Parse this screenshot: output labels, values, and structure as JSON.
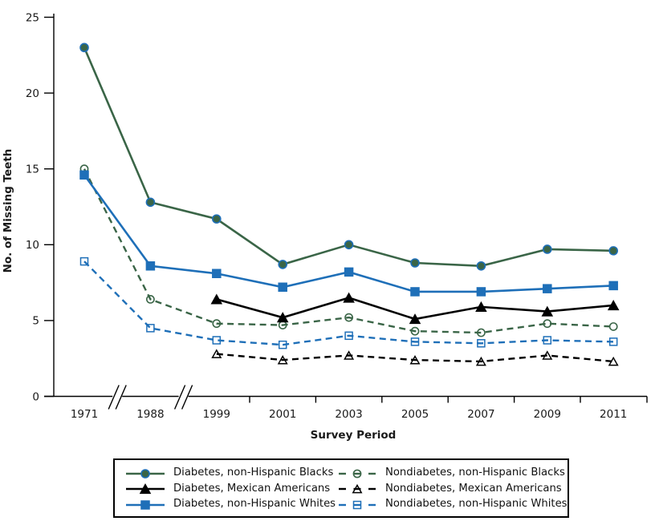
{
  "chart_data": {
    "type": "line",
    "xlabel": "Survey Period",
    "ylabel": "No. of Missing Teeth",
    "ylim": [
      0,
      25
    ],
    "yticks": [
      0,
      5,
      10,
      15,
      20,
      25
    ],
    "grid": "off",
    "legend_position": "bottom-boxed-2-columns",
    "categories": [
      "1971",
      "1988",
      "1999",
      "2001",
      "2003",
      "2005",
      "2007",
      "2009",
      "2011"
    ],
    "axis_breaks_after": [
      0,
      1
    ],
    "colors": {
      "green": "#3a6547",
      "blue": "#1e6fb8",
      "black": "#000000",
      "axis": "#000000",
      "text": "#1a1a1a"
    },
    "series": [
      {
        "name": "Diabetes, non-Hispanic Blacks",
        "color": "#3a6547",
        "marker": "circle",
        "marker_fill": "filled",
        "marker_edge": "#1e6fb8",
        "line": "solid",
        "values": [
          23.0,
          12.8,
          11.7,
          8.7,
          10.0,
          8.8,
          8.6,
          9.7,
          9.6
        ]
      },
      {
        "name": "Diabetes, Mexican Americans",
        "color": "#000000",
        "marker": "triangle",
        "marker_fill": "filled",
        "line": "solid",
        "values": [
          null,
          null,
          6.4,
          5.2,
          6.5,
          5.1,
          5.9,
          5.6,
          6.0
        ]
      },
      {
        "name": "Diabetes, non-Hispanic Whites",
        "color": "#1e6fb8",
        "marker": "square",
        "marker_fill": "filled",
        "line": "solid",
        "values": [
          14.6,
          8.6,
          8.1,
          7.2,
          8.2,
          6.9,
          6.9,
          7.1,
          7.3
        ]
      },
      {
        "name": "Nondiabetes, non-Hispanic Blacks",
        "color": "#3a6547",
        "marker": "circle",
        "marker_fill": "open",
        "line": "dashed",
        "values": [
          15.0,
          6.4,
          4.8,
          4.7,
          5.2,
          4.3,
          4.2,
          4.8,
          4.6
        ]
      },
      {
        "name": "Nondiabetes, Mexican Americans",
        "color": "#000000",
        "marker": "triangle",
        "marker_fill": "open",
        "line": "dashed",
        "values": [
          null,
          null,
          2.8,
          2.4,
          2.7,
          2.4,
          2.3,
          2.7,
          2.3
        ]
      },
      {
        "name": "Nondiabetes, non-Hispanic Whites",
        "color": "#1e6fb8",
        "marker": "square",
        "marker_fill": "open",
        "line": "dashed",
        "values": [
          8.9,
          4.5,
          3.7,
          3.4,
          4.0,
          3.6,
          3.5,
          3.7,
          3.6
        ]
      }
    ]
  }
}
